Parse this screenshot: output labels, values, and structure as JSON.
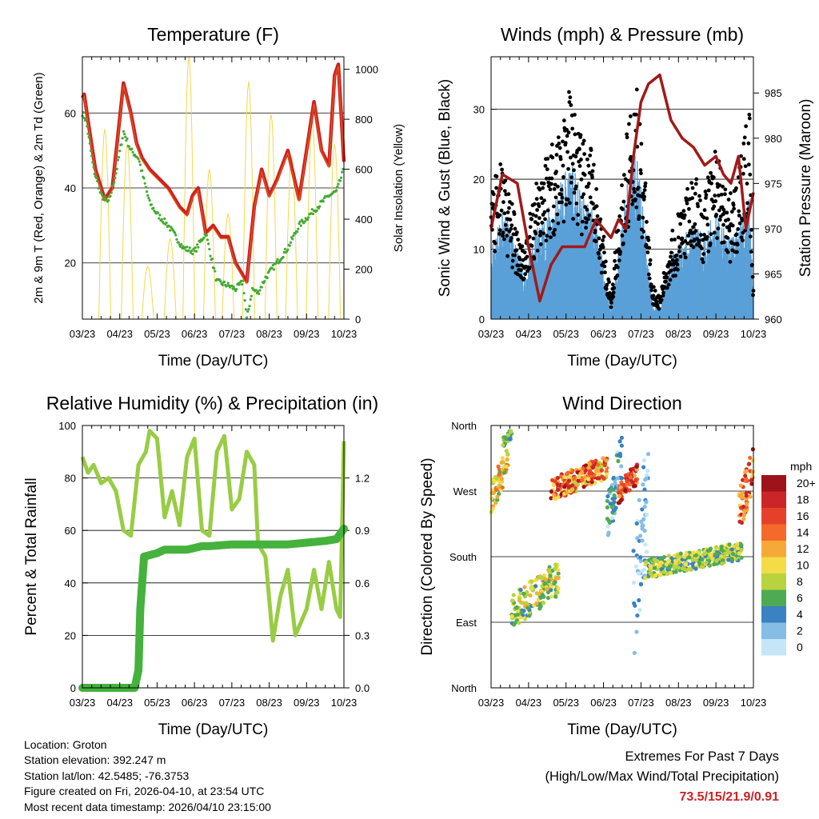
{
  "colors": {
    "red": "#cc2222",
    "orange": "#ee6611",
    "green_td": "#44aa33",
    "yellow": "#f2d84a",
    "black": "#000000",
    "blue": "#5aa0d8",
    "maroon": "#a01a1a",
    "rh": "#99cc44",
    "precip": "#44b23c",
    "grid": "#000000"
  },
  "footer": {
    "location": "Location: Groton",
    "elevation": "Station elevation: 392.247 m",
    "latlon": "Station lat/lon: 42.5485; -76.3753",
    "created": "Figure created on Fri, 2026-04-10, at 23:54 UTC",
    "recent": "Most recent data timestamp: 2026/04/10 23:15:00"
  },
  "extremes": {
    "title": "Extremes For Past 7 Days",
    "subtitle": "(High/Low/Max Wind/Total Precipitation)",
    "values": "73.5/15/21.9/0.91"
  },
  "chart_data": [
    {
      "id": "temperature",
      "type": "line",
      "title": "Temperature (F)",
      "xlabel": "Time (Day/UTC)",
      "ylabel": "2m & 9m T (Red, Orange) & 2m Td (Green)",
      "y2label": "Solar Insolation (Yellow)",
      "xticks": [
        "03/23",
        "04/23",
        "05/23",
        "06/23",
        "07/23",
        "08/23",
        "09/23",
        "10/23"
      ],
      "xlim": [
        0,
        7
      ],
      "ylim": [
        5,
        75
      ],
      "yticks": [
        20,
        40,
        60
      ],
      "y2lim": [
        0,
        1050
      ],
      "y2ticks": [
        0,
        200,
        400,
        600,
        800,
        1000
      ],
      "series": [
        {
          "name": "2m T",
          "color": "#cc2222",
          "x": [
            0,
            0.05,
            0.15,
            0.35,
            0.6,
            0.8,
            1.1,
            1.3,
            1.45,
            1.6,
            1.8,
            2.0,
            2.3,
            2.6,
            2.8,
            2.95,
            3.1,
            3.3,
            3.5,
            3.7,
            3.9,
            4.1,
            4.4,
            4.6,
            4.8,
            5.0,
            5.2,
            5.5,
            5.8,
            6.0,
            6.2,
            6.4,
            6.6,
            6.75,
            6.85,
            7.0
          ],
          "y": [
            64,
            65,
            58,
            45,
            37,
            40,
            68,
            60,
            52,
            48,
            45,
            43,
            40,
            35,
            33,
            38,
            40,
            28,
            30,
            27,
            27,
            20,
            15,
            35,
            45,
            38,
            42,
            50,
            37,
            50,
            63,
            50,
            46,
            70,
            73,
            47
          ]
        },
        {
          "name": "Td",
          "color": "#44aa33",
          "x": [
            0,
            0.1,
            0.3,
            0.5,
            0.7,
            0.9,
            1.1,
            1.3,
            1.5,
            1.8,
            2.0,
            2.3,
            2.5,
            2.7,
            3.0,
            3.3,
            3.6,
            3.9,
            4.1,
            4.3,
            4.4,
            4.55,
            4.7,
            4.9,
            5.2,
            5.5,
            5.8,
            6.1,
            6.3,
            6.6,
            6.8,
            7.0
          ],
          "y": [
            60,
            58,
            45,
            38,
            36,
            44,
            55,
            50,
            48,
            36,
            33,
            30,
            27,
            24,
            23,
            28,
            15,
            14,
            13,
            15,
            5,
            13,
            12,
            16,
            20,
            24,
            30,
            33,
            35,
            38,
            39,
            45
          ]
        },
        {
          "name": "Solar",
          "color": "#f2d84a",
          "axis": "y2",
          "peaks": [
            [
              0.6,
              760
            ],
            [
              1.2,
              700
            ],
            [
              1.75,
              210
            ],
            [
              2.35,
              320
            ],
            [
              2.85,
              1050
            ],
            [
              3.4,
              600
            ],
            [
              3.9,
              420
            ],
            [
              4.45,
              950
            ],
            [
              5.05,
              820
            ],
            [
              5.6,
              650
            ],
            [
              6.15,
              800
            ],
            [
              6.75,
              700
            ]
          ]
        }
      ]
    },
    {
      "id": "winds",
      "type": "scatter",
      "title": "Winds (mph) & Pressure (mb)",
      "xlabel": "Time (Day/UTC)",
      "ylabel": "Sonic Wind & Gust (Blue, Black)",
      "y2label": "Station Pressure (Maroon)",
      "xticks": [
        "03/23",
        "04/23",
        "05/23",
        "06/23",
        "07/23",
        "08/23",
        "09/23",
        "10/23"
      ],
      "xlim": [
        0,
        7
      ],
      "ylim": [
        0,
        37.5
      ],
      "yticks": [
        0,
        10,
        20,
        30
      ],
      "y2lim": [
        960,
        989
      ],
      "y2ticks": [
        960,
        965,
        970,
        975,
        980,
        985
      ],
      "series": [
        {
          "name": "Gust envelope",
          "color": "#000000",
          "x": [
            0,
            0.3,
            0.6,
            0.9,
            1.2,
            1.5,
            1.8,
            2.1,
            2.4,
            2.7,
            3.0,
            3.2,
            3.4,
            3.7,
            3.9,
            4.1,
            4.3,
            4.5,
            4.8,
            5.1,
            5.4,
            5.7,
            6.0,
            6.3,
            6.6,
            6.9,
            7.0
          ],
          "y": [
            18,
            22,
            15,
            10,
            20,
            24,
            27,
            32,
            25,
            23,
            12,
            3,
            15,
            29,
            33,
            20,
            5,
            3,
            12,
            16,
            20,
            17,
            25,
            17,
            20,
            30,
            4
          ]
        },
        {
          "name": "Wind envelope",
          "color": "#5aa0d8",
          "x": [
            0,
            0.3,
            0.6,
            0.9,
            1.2,
            1.5,
            1.8,
            2.1,
            2.4,
            2.7,
            3.0,
            3.2,
            3.4,
            3.7,
            3.9,
            4.1,
            4.3,
            4.5,
            4.8,
            5.1,
            5.4,
            5.7,
            6.0,
            6.3,
            6.6,
            6.9,
            7.0
          ],
          "y": [
            8,
            13,
            9,
            5,
            10,
            12,
            15,
            18,
            14,
            13,
            6,
            1,
            8,
            17,
            19,
            11,
            2,
            1,
            7,
            9,
            11,
            9,
            13,
            9,
            11,
            14,
            2
          ]
        },
        {
          "name": "Pressure",
          "color": "#a01a1a",
          "axis": "y2",
          "x": [
            0,
            0.3,
            0.7,
            1.0,
            1.3,
            1.6,
            1.9,
            2.2,
            2.5,
            2.8,
            3.0,
            3.2,
            3.4,
            3.6,
            3.8,
            4.0,
            4.2,
            4.5,
            4.8,
            5.1,
            5.4,
            5.7,
            6.0,
            6.2,
            6.4,
            6.6,
            6.8,
            7.0
          ],
          "y": [
            970,
            976,
            975,
            968,
            962,
            966,
            968,
            968,
            968,
            971,
            970,
            969,
            971,
            970,
            978,
            984,
            986,
            987,
            982,
            980,
            979,
            977,
            978,
            976,
            975,
            978,
            970,
            974
          ]
        }
      ]
    },
    {
      "id": "humidity",
      "type": "line",
      "title": "Relative Humidity (%) & Precipitation (in)",
      "xlabel": "Time (Day/UTC)",
      "ylabel": "Percent & Total Rainfall",
      "xticks": [
        "03/23",
        "04/23",
        "05/23",
        "06/23",
        "07/23",
        "08/23",
        "09/23",
        "10/23"
      ],
      "xlim": [
        0,
        7
      ],
      "ylim": [
        0,
        100
      ],
      "yticks": [
        0,
        20,
        40,
        60,
        80,
        100
      ],
      "y2lim": [
        0,
        1.5
      ],
      "y2ticks": [
        0.0,
        0.3,
        0.6,
        0.9,
        1.2
      ],
      "series": [
        {
          "name": "RH",
          "color": "#99cc44",
          "x": [
            0,
            0.15,
            0.3,
            0.5,
            0.7,
            0.9,
            1.1,
            1.3,
            1.5,
            1.7,
            1.8,
            2.0,
            2.2,
            2.4,
            2.6,
            2.8,
            3.0,
            3.2,
            3.4,
            3.6,
            3.8,
            4.0,
            4.2,
            4.4,
            4.6,
            4.7,
            4.9,
            5.1,
            5.3,
            5.5,
            5.7,
            6.0,
            6.2,
            6.4,
            6.6,
            6.8,
            6.9,
            7.0
          ],
          "y": [
            88,
            82,
            85,
            78,
            80,
            75,
            60,
            58,
            85,
            90,
            98,
            95,
            65,
            75,
            62,
            88,
            95,
            60,
            58,
            90,
            96,
            68,
            72,
            90,
            85,
            55,
            50,
            18,
            35,
            45,
            20,
            30,
            45,
            30,
            48,
            30,
            27,
            94
          ]
        },
        {
          "name": "Precip",
          "color": "#44b23c",
          "axis": "y2",
          "x": [
            0,
            1.4,
            1.5,
            1.55,
            1.65,
            2.0,
            2.2,
            2.8,
            3.0,
            3.2,
            3.4,
            4.0,
            4.5,
            5.0,
            5.5,
            6.0,
            6.5,
            6.8,
            7.0
          ],
          "y": [
            0,
            0,
            0.1,
            0.45,
            0.75,
            0.77,
            0.79,
            0.79,
            0.8,
            0.81,
            0.81,
            0.82,
            0.82,
            0.82,
            0.82,
            0.83,
            0.84,
            0.85,
            0.91
          ]
        }
      ]
    },
    {
      "id": "direction",
      "type": "scatter",
      "title": "Wind Direction",
      "xlabel": "Time (Day/UTC)",
      "ylabel": "Direction (Colored By Speed)",
      "xticks": [
        "03/23",
        "04/23",
        "05/23",
        "06/23",
        "07/23",
        "08/23",
        "09/23",
        "10/23"
      ],
      "xlim": [
        0,
        7
      ],
      "ylim": [
        0,
        360
      ],
      "ylabels": [
        "North",
        "East",
        "South",
        "West",
        "North"
      ],
      "legend_title": "mph",
      "legend": [
        "20+",
        "18",
        "16",
        "14",
        "12",
        "10",
        "8",
        "6",
        "4",
        "2",
        "0"
      ],
      "legend_colors": [
        "#9e1219",
        "#cc2527",
        "#e5412a",
        "#f46a2a",
        "#f6a938",
        "#f3dc47",
        "#b9d33f",
        "#4fab53",
        "#3a82c2",
        "#85bde5",
        "#c5e6f8"
      ],
      "segments": [
        {
          "x": [
            0,
            0.45
          ],
          "dir": [
            240,
            330
          ],
          "spd": [
            6,
            14
          ]
        },
        {
          "x": [
            0.3,
            0.55
          ],
          "dir": [
            330,
            355
          ],
          "spd": [
            3,
            8
          ]
        },
        {
          "x": [
            0.55,
            1.8
          ],
          "dir": [
            80,
            175
          ],
          "spd": [
            4,
            12
          ]
        },
        {
          "x": [
            1.6,
            3.1
          ],
          "dir": [
            255,
            320
          ],
          "spd": [
            8,
            20
          ]
        },
        {
          "x": [
            3.1,
            3.5
          ],
          "dir": [
            200,
            350
          ],
          "spd": [
            0,
            6
          ]
        },
        {
          "x": [
            3.4,
            3.9
          ],
          "dir": [
            250,
            310
          ],
          "spd": [
            12,
            20
          ]
        },
        {
          "x": [
            3.8,
            4.2
          ],
          "dir": [
            30,
            360
          ],
          "spd": [
            0,
            4
          ]
        },
        {
          "x": [
            4.1,
            6.7
          ],
          "dir": [
            150,
            200
          ],
          "spd": [
            4,
            11
          ]
        },
        {
          "x": [
            6.6,
            7.0
          ],
          "dir": [
            210,
            330
          ],
          "spd": [
            10,
            20
          ]
        }
      ]
    }
  ]
}
